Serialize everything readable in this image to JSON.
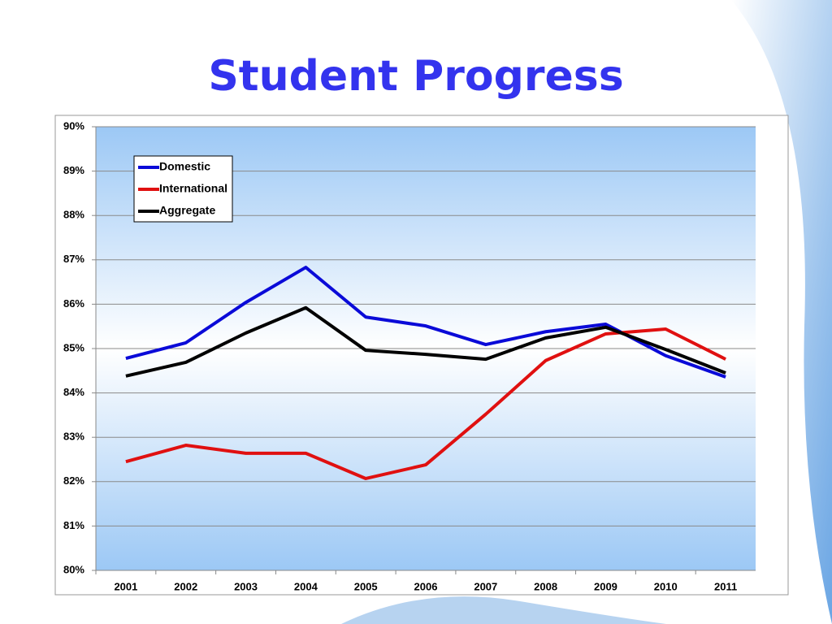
{
  "chart_data": {
    "type": "line",
    "title": "Student Progress",
    "categories": [
      "2001",
      "2002",
      "2003",
      "2004",
      "2005",
      "2006",
      "2007",
      "2008",
      "2009",
      "2010",
      "2011"
    ],
    "series": [
      {
        "name": "Domestic",
        "color": "#0a0ad8",
        "values": [
          84.78,
          85.13,
          86.04,
          86.83,
          85.71,
          85.51,
          85.09,
          85.38,
          85.55,
          84.84,
          84.36
        ]
      },
      {
        "name": "International",
        "color": "#e01010",
        "values": [
          82.45,
          82.82,
          82.64,
          82.64,
          82.07,
          82.38,
          83.52,
          84.73,
          85.33,
          85.44,
          84.76
        ]
      },
      {
        "name": "Aggregate",
        "color": "#000000",
        "values": [
          84.38,
          84.69,
          85.35,
          85.92,
          84.96,
          84.87,
          84.76,
          85.24,
          85.48,
          84.98,
          84.45
        ]
      }
    ],
    "ylim": [
      80,
      90
    ],
    "yticks": [
      {
        "value": 80,
        "label": "80%"
      },
      {
        "value": 81,
        "label": "81%"
      },
      {
        "value": 82,
        "label": "82%"
      },
      {
        "value": 83,
        "label": "83%"
      },
      {
        "value": 84,
        "label": "84%"
      },
      {
        "value": 85,
        "label": "85%"
      },
      {
        "value": 86,
        "label": "86%"
      },
      {
        "value": 87,
        "label": "87%"
      },
      {
        "value": 88,
        "label": "88%"
      },
      {
        "value": 89,
        "label": "89%"
      },
      {
        "value": 90,
        "label": "90%"
      }
    ],
    "grid": true,
    "legend": "upper-left"
  }
}
